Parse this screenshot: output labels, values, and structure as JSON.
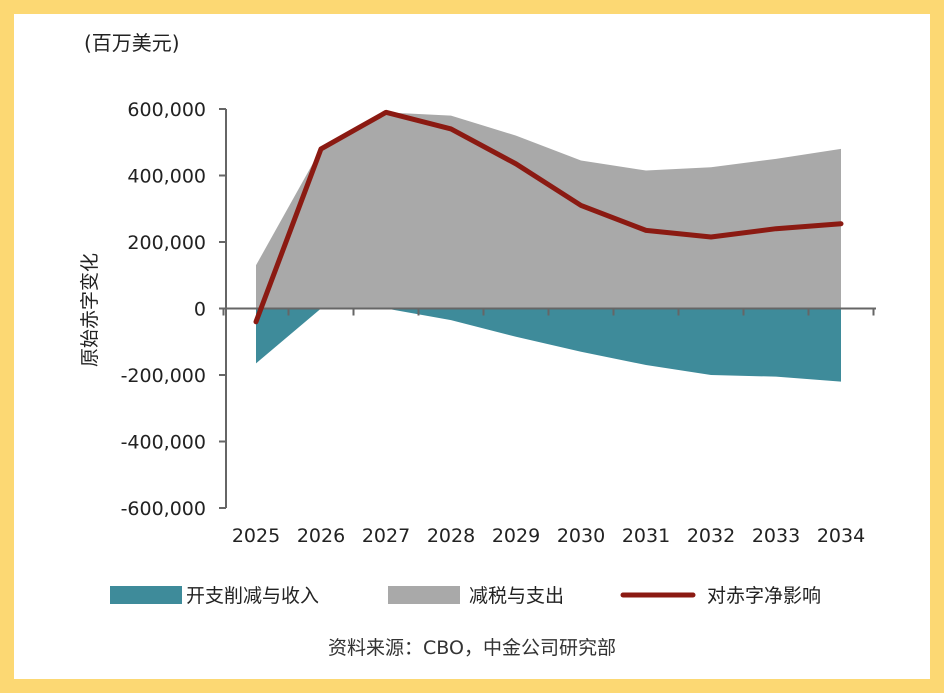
{
  "chart_data": {
    "type": "area",
    "unit_label": "(百万美元)",
    "ylabel": "原始赤字变化",
    "x": [
      "2025",
      "2026",
      "2027",
      "2028",
      "2029",
      "2030",
      "2031",
      "2032",
      "2033",
      "2034"
    ],
    "ylim": [
      -600000,
      600000
    ],
    "yticks": [
      600000,
      400000,
      200000,
      0,
      -200000,
      -400000,
      -600000
    ],
    "ytick_labels": [
      "600,000",
      "400,000",
      "200,000",
      "0",
      "-200,000",
      "-400,000",
      "-600,000"
    ],
    "series": [
      {
        "name": "开支削减与收入",
        "kind": "area",
        "color": "#3e8b9a",
        "values": [
          -165000,
          0,
          0,
          -35000,
          -85000,
          -130000,
          -170000,
          -200000,
          -205000,
          -220000
        ]
      },
      {
        "name": "减税与支出",
        "kind": "area",
        "color": "#a9a9a9",
        "values": [
          130000,
          480000,
          590000,
          580000,
          520000,
          445000,
          415000,
          425000,
          450000,
          480000
        ]
      },
      {
        "name": "对赤字净影响",
        "kind": "line",
        "color": "#8b1a12",
        "values": [
          -40000,
          480000,
          590000,
          540000,
          435000,
          310000,
          235000,
          215000,
          240000,
          255000
        ]
      }
    ],
    "grid": false,
    "legend_position": "bottom",
    "source": "资料来源：CBO，中金公司研究部"
  }
}
